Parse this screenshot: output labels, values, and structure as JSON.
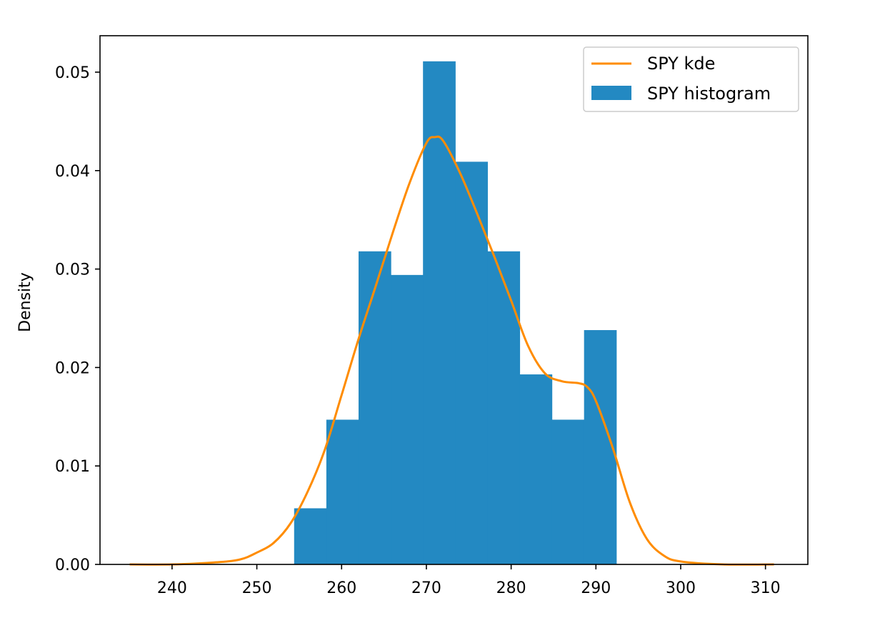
{
  "chart_data": {
    "type": "bar",
    "title": "",
    "xlabel": "",
    "ylabel": "Density",
    "xlim": [
      231.5,
      315
    ],
    "ylim": [
      0,
      0.0537
    ],
    "xticks": [
      240,
      250,
      260,
      270,
      280,
      290,
      300,
      310
    ],
    "yticks": [
      0.0,
      0.01,
      0.02,
      0.03,
      0.04,
      0.05
    ],
    "ytick_labels": [
      "0.00",
      "0.01",
      "0.02",
      "0.03",
      "0.04",
      "0.05"
    ],
    "grid": false,
    "legend_position": "top-right",
    "histogram": {
      "name": "SPY histogram",
      "color": "#2389c2",
      "bin_edges": [
        254.4,
        258.2,
        262.0,
        265.8,
        269.6,
        273.4,
        277.2,
        281.0,
        284.8,
        288.6,
        292.4
      ],
      "values": [
        0.0057,
        0.0147,
        0.0318,
        0.0294,
        0.0511,
        0.0409,
        0.0318,
        0.0193,
        0.0147,
        0.0238
      ]
    },
    "kde": {
      "name": "SPY kde",
      "color": "#ff8c00",
      "x": [
        235,
        240,
        245,
        248,
        250,
        252,
        254,
        256,
        258,
        260,
        262,
        264,
        266,
        268,
        270,
        271,
        272,
        274,
        276,
        278,
        280,
        282,
        284,
        286,
        288,
        289,
        290,
        292,
        294,
        296,
        298,
        300,
        305,
        311
      ],
      "y": [
        0,
        0,
        0.0002,
        0.0005,
        0.0012,
        0.0022,
        0.0042,
        0.0074,
        0.0116,
        0.0172,
        0.0229,
        0.0282,
        0.0336,
        0.0387,
        0.0428,
        0.0434,
        0.043,
        0.0397,
        0.0356,
        0.0313,
        0.0268,
        0.0222,
        0.0194,
        0.0186,
        0.0184,
        0.018,
        0.0166,
        0.0118,
        0.0063,
        0.0026,
        0.0009,
        0.0003,
        0,
        0
      ]
    }
  }
}
